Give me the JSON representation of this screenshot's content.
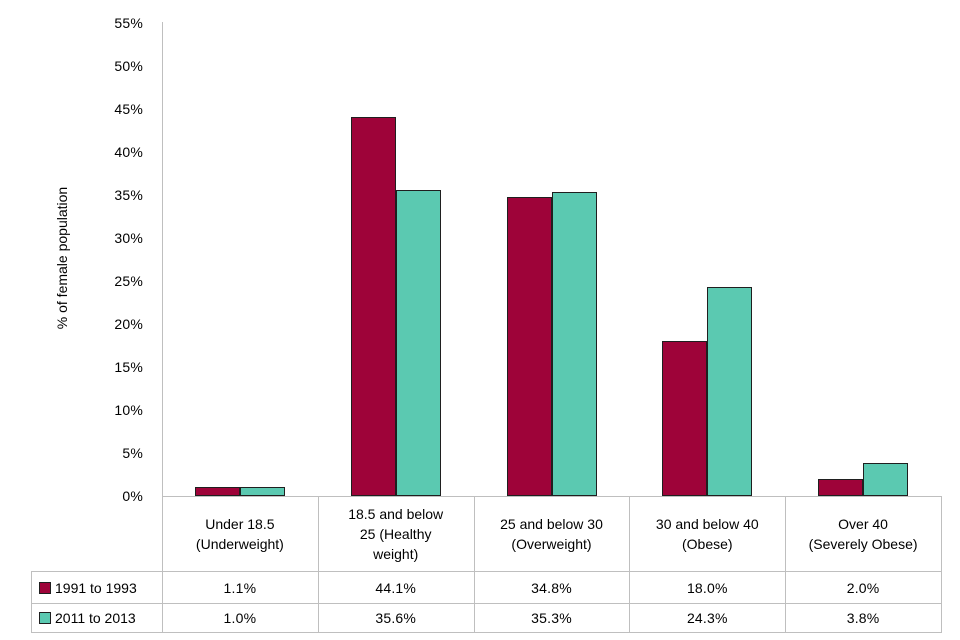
{
  "chart_data": {
    "type": "bar",
    "title": "",
    "ylabel": "% of female population",
    "xlabel": "",
    "ylim": [
      0,
      55
    ],
    "ytick_step": 5,
    "ytick_labels": [
      "0%",
      "5%",
      "10%",
      "15%",
      "20%",
      "25%",
      "30%",
      "35%",
      "40%",
      "45%",
      "50%",
      "55%"
    ],
    "grid": false,
    "legend_position": "table-left-column",
    "categories": [
      "Under 18.5 (Underweight)",
      "18.5 and below 25 (Healthy weight)",
      "25 and below 30 (Overweight)",
      "30 and below 40 (Obese)",
      "Over 40 (Severely Obese)"
    ],
    "categories_lines": [
      [
        "Under 18.5",
        "(Underweight)"
      ],
      [
        "18.5 and below",
        "25 (Healthy",
        "weight)"
      ],
      [
        "25 and below 30",
        "(Overweight)"
      ],
      [
        "30 and below 40",
        "(Obese)"
      ],
      [
        "Over 40",
        "(Severely Obese)"
      ]
    ],
    "series": [
      {
        "name": "1991 to 1993",
        "color": "#9E0339",
        "values": [
          1.1,
          44.1,
          34.8,
          18.0,
          2.0
        ],
        "labels": [
          "1.1%",
          "44.1%",
          "34.8%",
          "18.0%",
          "2.0%"
        ]
      },
      {
        "name": "2011 to 2013",
        "color": "#5BC9B1",
        "values": [
          1.0,
          35.6,
          35.3,
          24.3,
          3.8
        ],
        "labels": [
          "1.0%",
          "35.6%",
          "35.3%",
          "24.3%",
          "3.8%"
        ]
      }
    ],
    "colors": {
      "bar_border": "#1F1F1F",
      "axis_and_table_lines": "#BFBFBF",
      "text": "#000000",
      "background": "#FFFFFF"
    }
  }
}
